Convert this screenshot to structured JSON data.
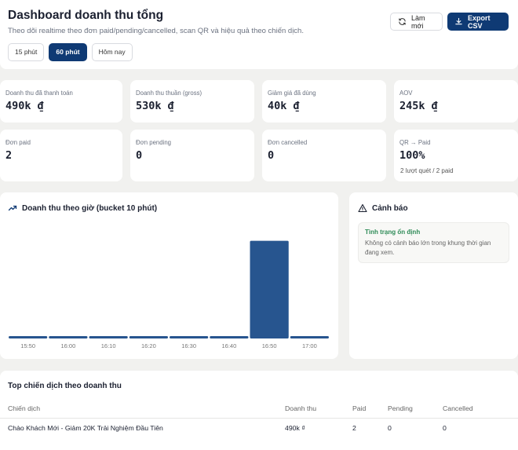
{
  "header": {
    "title": "Dashboard doanh thu tổng",
    "subtitle": "Theo dõi realtime theo đơn paid/pending/cancelled, scan QR và hiệu quả theo chiến dịch.",
    "tabs": [
      {
        "label": "15 phút",
        "active": false
      },
      {
        "label": "60 phút",
        "active": true
      },
      {
        "label": "Hôm nay",
        "active": false
      }
    ],
    "refresh_label": "Làm mới",
    "export_label": "Export CSV"
  },
  "stats": [
    {
      "label": "Doanh thu đã thanh toán",
      "value": "490k ₫",
      "extra": ""
    },
    {
      "label": "Doanh thu thuần (gross)",
      "value": "530k ₫",
      "extra": ""
    },
    {
      "label": "Giảm giá đã dùng",
      "value": "40k ₫",
      "extra": ""
    },
    {
      "label": "AOV",
      "value": "245k ₫",
      "extra": ""
    },
    {
      "label": "Đơn paid",
      "value": "2",
      "extra": ""
    },
    {
      "label": "Đơn pending",
      "value": "0",
      "extra": ""
    },
    {
      "label": "Đơn cancelled",
      "value": "0",
      "extra": ""
    },
    {
      "label": "QR → Paid",
      "value": "100%",
      "extra": "2 lượt quét / 2 paid"
    }
  ],
  "chart_panel": {
    "title": "Doanh thu theo giờ (bucket 10 phút)",
    "icon": "trending-up-icon"
  },
  "chart_data": {
    "type": "bar",
    "categories": [
      "15:50",
      "16:00",
      "16:10",
      "16:20",
      "16:30",
      "16:40",
      "16:50",
      "17:00"
    ],
    "values": [
      0,
      0,
      0,
      0,
      0,
      0,
      490,
      0
    ],
    "ylim": [
      0,
      520
    ],
    "color": "#27558f",
    "title": "",
    "xlabel": "",
    "ylabel": ""
  },
  "alerts": {
    "title": "Cảnh báo",
    "icon": "warning-icon",
    "status_title": "Tình trạng ổn định",
    "status_text": "Không có cảnh báo lớn trong khung thời gian đang xem."
  },
  "campaigns": {
    "title": "Top chiến dịch theo doanh thu",
    "columns": [
      "Chiến dịch",
      "Doanh thu",
      "Paid",
      "Pending",
      "Cancelled"
    ],
    "rows": [
      [
        "Chào Khách Mới - Giảm 20K Trải Nghiệm Đầu Tiên",
        "490k ₫",
        "2",
        "0",
        "0"
      ]
    ]
  },
  "colors": {
    "primary": "#0f3a74",
    "bar": "#27558f",
    "ok": "#2e8b57"
  }
}
